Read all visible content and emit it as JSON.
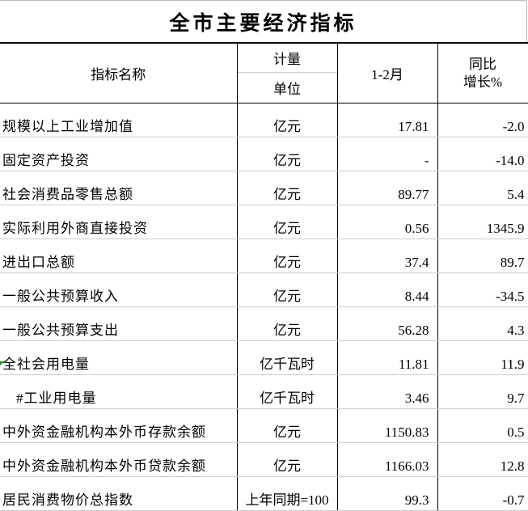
{
  "title": "全市主要经济指标",
  "header": {
    "name": "指标名称",
    "unit_top": "计量",
    "unit_bottom": "单位",
    "period": "1-2月",
    "growth_top": "同比",
    "growth_bottom": "增长%"
  },
  "rows": [
    {
      "name": "规模以上工业增加值",
      "unit": "亿元",
      "value": "17.81",
      "growth": "-2.0"
    },
    {
      "name": "固定资产投资",
      "unit": "亿元",
      "value": "-",
      "growth": "-14.0"
    },
    {
      "name": "社会消费品零售总额",
      "unit": "亿元",
      "value": "89.77",
      "growth": "5.4"
    },
    {
      "name": "实际利用外商直接投资",
      "unit": "亿元",
      "value": "0.56",
      "growth": "1345.9"
    },
    {
      "name": "进出口总额",
      "unit": "亿元",
      "value": "37.4",
      "growth": "89.7"
    },
    {
      "name": "一般公共预算收入",
      "unit": "亿元",
      "value": "8.44",
      "growth": "-34.5"
    },
    {
      "name": "一般公共预算支出",
      "unit": "亿元",
      "value": "56.28",
      "growth": "4.3"
    },
    {
      "name": "全社会用电量",
      "unit": "亿千瓦时",
      "value": "11.81",
      "growth": "11.9"
    },
    {
      "name": "#工业用电量",
      "unit": "亿千瓦时",
      "value": "3.46",
      "growth": "9.7"
    },
    {
      "name": "中外资金融机构本外币存款余额",
      "unit": "亿元",
      "value": "1150.83",
      "growth": "0.5"
    },
    {
      "name": "中外资金融机构本外币贷款余额",
      "unit": "亿元",
      "value": "1166.03",
      "growth": "12.8"
    },
    {
      "name": "居民消费物价总指数",
      "unit": "上年同期=100",
      "value": "99.3",
      "growth": "-0.7"
    }
  ]
}
